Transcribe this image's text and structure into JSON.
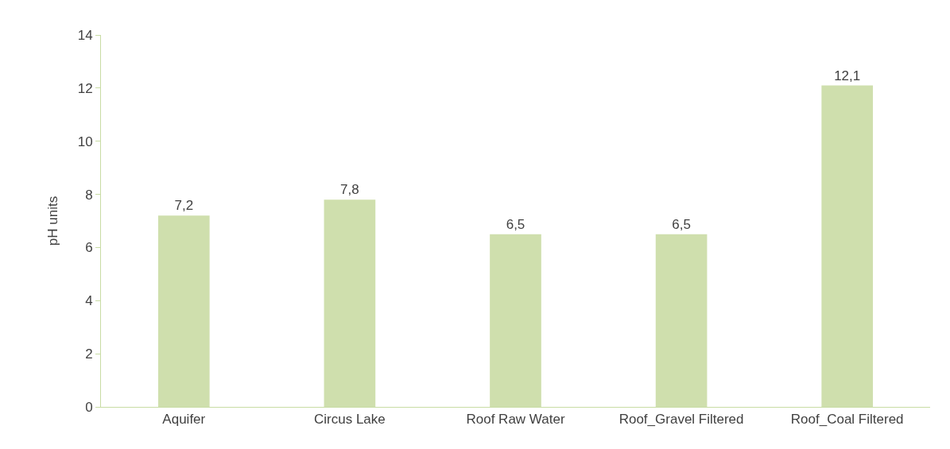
{
  "chart_data": {
    "type": "bar",
    "ylabel": "pH units",
    "categories": [
      "Aquifer",
      "Circus Lake",
      "Roof Raw Water",
      "Roof_Gravel Filtered",
      "Roof_Coal Filtered"
    ],
    "values": [
      7.2,
      7.8,
      6.5,
      6.5,
      12.1
    ],
    "value_labels": [
      "7,2",
      "7,8",
      "6,5",
      "6,5",
      "12,1"
    ],
    "color": "#cfdfad",
    "ylim": [
      0,
      14
    ],
    "yticks": [
      0,
      2,
      4,
      6,
      8,
      10,
      12,
      14
    ]
  }
}
